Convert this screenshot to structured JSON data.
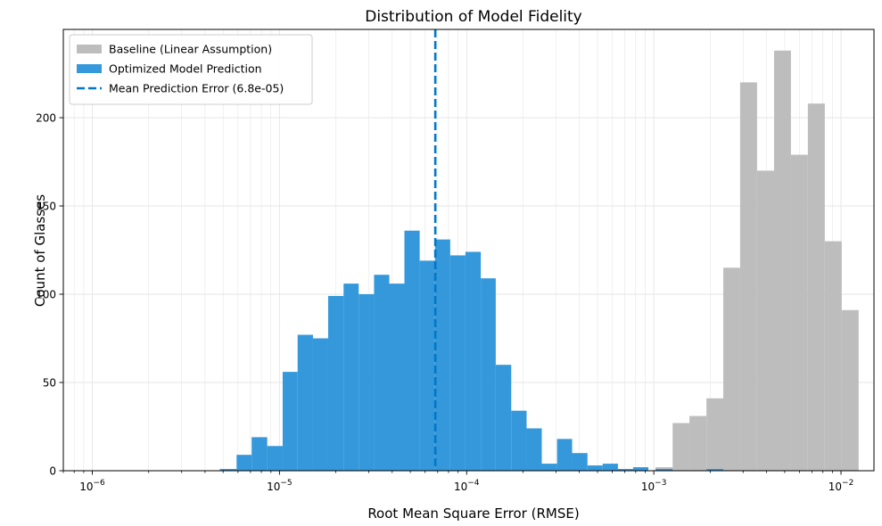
{
  "chart_data": {
    "type": "histogram",
    "title": "Distribution of Model Fidelity",
    "xlabel": "Root Mean Square Error (RMSE)",
    "ylabel": "Count of Glasses",
    "x_scale": "log",
    "xlim": [
      7e-07,
      0.015
    ],
    "ylim": [
      0,
      250
    ],
    "x_ticks": [
      {
        "value": 1e-06,
        "label": "10",
        "exp": "−6"
      },
      {
        "value": 1e-05,
        "label": "10",
        "exp": "−5"
      },
      {
        "value": 0.0001,
        "label": "10",
        "exp": "−4"
      },
      {
        "value": 0.001,
        "label": "10",
        "exp": "−3"
      },
      {
        "value": 0.01,
        "label": "10",
        "exp": "−2"
      }
    ],
    "y_ticks": [
      0,
      50,
      100,
      150,
      200
    ],
    "grid": true,
    "legend_position": "top-left",
    "series": [
      {
        "name": "Baseline (Linear Assumption)",
        "kind": "bar",
        "color": "#bdbdbd",
        "bins": [
          {
            "x0": 0.00102,
            "x1": 0.00126,
            "count": 2
          },
          {
            "x0": 0.00126,
            "x1": 0.00155,
            "count": 27
          },
          {
            "x0": 0.00155,
            "x1": 0.00191,
            "count": 31
          },
          {
            "x0": 0.00191,
            "x1": 0.00235,
            "count": 41
          },
          {
            "x0": 0.00235,
            "x1": 0.00289,
            "count": 115
          },
          {
            "x0": 0.00289,
            "x1": 0.00356,
            "count": 220
          },
          {
            "x0": 0.00356,
            "x1": 0.00439,
            "count": 170
          },
          {
            "x0": 0.00439,
            "x1": 0.0054,
            "count": 238
          },
          {
            "x0": 0.0054,
            "x1": 0.00665,
            "count": 179
          },
          {
            "x0": 0.00665,
            "x1": 0.00819,
            "count": 208
          },
          {
            "x0": 0.00819,
            "x1": 0.01009,
            "count": 130
          },
          {
            "x0": 0.01009,
            "x1": 0.01242,
            "count": 91
          }
        ]
      },
      {
        "name": "Optimized Model Prediction",
        "kind": "bar",
        "color": "#3498db",
        "bins": [
          {
            "x0": 4.8e-06,
            "x1": 5.9e-06,
            "count": 1
          },
          {
            "x0": 5.9e-06,
            "x1": 7.1e-06,
            "count": 9
          },
          {
            "x0": 7.1e-06,
            "x1": 8.6e-06,
            "count": 19
          },
          {
            "x0": 8.6e-06,
            "x1": 1.04e-05,
            "count": 14
          },
          {
            "x0": 1.04e-05,
            "x1": 1.25e-05,
            "count": 56
          },
          {
            "x0": 1.25e-05,
            "x1": 1.51e-05,
            "count": 77
          },
          {
            "x0": 1.51e-05,
            "x1": 1.82e-05,
            "count": 75
          },
          {
            "x0": 1.82e-05,
            "x1": 2.2e-05,
            "count": 99
          },
          {
            "x0": 2.2e-05,
            "x1": 2.65e-05,
            "count": 106
          },
          {
            "x0": 2.65e-05,
            "x1": 3.2e-05,
            "count": 100
          },
          {
            "x0": 3.2e-05,
            "x1": 3.86e-05,
            "count": 111
          },
          {
            "x0": 3.86e-05,
            "x1": 4.65e-05,
            "count": 106
          },
          {
            "x0": 4.65e-05,
            "x1": 5.61e-05,
            "count": 136
          },
          {
            "x0": 5.61e-05,
            "x1": 6.77e-05,
            "count": 119
          },
          {
            "x0": 6.77e-05,
            "x1": 8.17e-05,
            "count": 131
          },
          {
            "x0": 8.17e-05,
            "x1": 9.85e-05,
            "count": 122
          },
          {
            "x0": 9.85e-05,
            "x1": 0.000119,
            "count": 124
          },
          {
            "x0": 0.000119,
            "x1": 0.000143,
            "count": 109
          },
          {
            "x0": 0.000143,
            "x1": 0.000173,
            "count": 60
          },
          {
            "x0": 0.000173,
            "x1": 0.000209,
            "count": 34
          },
          {
            "x0": 0.000209,
            "x1": 0.000252,
            "count": 24
          },
          {
            "x0": 0.000252,
            "x1": 0.000304,
            "count": 4
          },
          {
            "x0": 0.000304,
            "x1": 0.000366,
            "count": 18
          },
          {
            "x0": 0.000366,
            "x1": 0.000442,
            "count": 10
          },
          {
            "x0": 0.000442,
            "x1": 0.000533,
            "count": 3
          },
          {
            "x0": 0.000533,
            "x1": 0.000643,
            "count": 4
          },
          {
            "x0": 0.000643,
            "x1": 0.000775,
            "count": 1
          },
          {
            "x0": 0.000775,
            "x1": 0.000935,
            "count": 2
          },
          {
            "x0": 0.00102,
            "x1": 0.00126,
            "count": 1
          },
          {
            "x0": 0.00191,
            "x1": 0.00235,
            "count": 1
          }
        ]
      },
      {
        "name": "Mean Prediction Error (6.8e-05)",
        "kind": "vline",
        "color": "#0077c8",
        "x": 6.8e-05
      }
    ]
  }
}
